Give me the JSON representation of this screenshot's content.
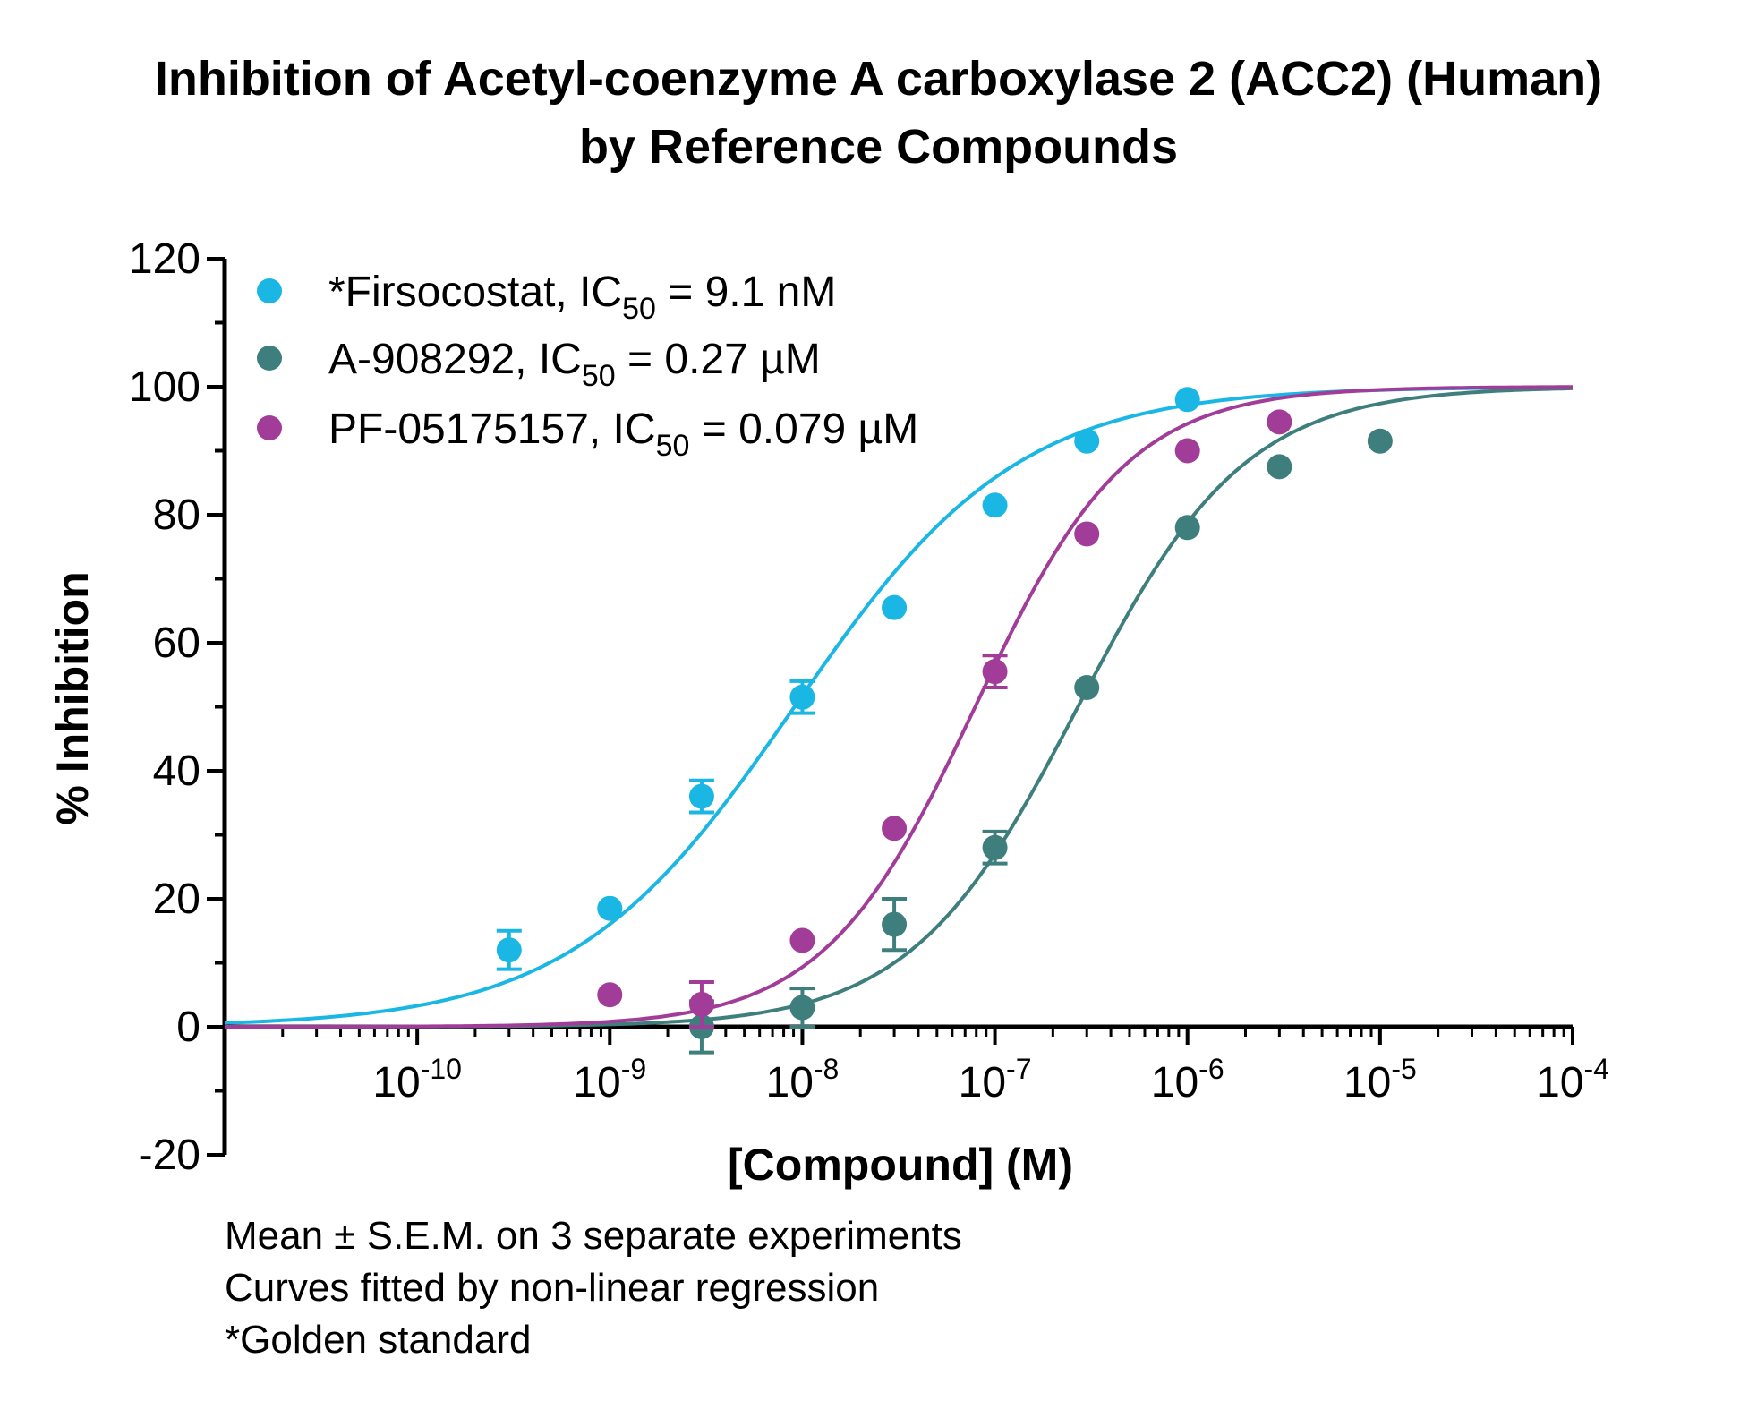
{
  "title_lines": [
    "Inhibition of Acetyl-coenzyme A carboxylase 2 (ACC2) (Human)",
    "by Reference Compounds"
  ],
  "notes": [
    "Mean ± S.E.M. on 3 separate experiments",
    "Curves fitted by non-linear regression",
    "*Golden standard"
  ],
  "chart_data": {
    "type": "scatter",
    "title": "Inhibition of Acetyl-coenzyme A carboxylase 2 (ACC2) (Human) by Reference Compounds",
    "xlabel": "[Compound] (M)",
    "ylabel": "% Inhibition",
    "x_scale": "log",
    "xlim": [
      1e-11,
      0.0001
    ],
    "ylim": [
      -20,
      120
    ],
    "y_ticks": [
      -20,
      0,
      20,
      40,
      60,
      80,
      100,
      120
    ],
    "x_tick_labels": [
      {
        "base": "10",
        "exp": "-10",
        "value": 1e-10
      },
      {
        "base": "10",
        "exp": "-9",
        "value": 1e-09
      },
      {
        "base": "10",
        "exp": "-8",
        "value": 1e-08
      },
      {
        "base": "10",
        "exp": "-7",
        "value": 1e-07
      },
      {
        "base": "10",
        "exp": "-6",
        "value": 1e-06
      },
      {
        "base": "10",
        "exp": "-5",
        "value": 1e-05
      },
      {
        "base": "10",
        "exp": "-4",
        "value": 0.0001
      }
    ],
    "grid": false,
    "legend_position": "top-left",
    "series": [
      {
        "name": "*Firsocostat",
        "legend_pre": "*Firsocostat, IC",
        "legend_sub": "50",
        "legend_post": " = 9.1 nM",
        "color": "#1ab6e4",
        "ic50": 9.1e-09,
        "hill": 0.75,
        "points": [
          {
            "x": 3e-10,
            "y": 12,
            "err": 3
          },
          {
            "x": 1e-09,
            "y": 18.5,
            "err": 0
          },
          {
            "x": 3e-09,
            "y": 36,
            "err": 2.5
          },
          {
            "x": 1e-08,
            "y": 51.5,
            "err": 2.5
          },
          {
            "x": 3e-08,
            "y": 65.5,
            "err": 0
          },
          {
            "x": 1e-07,
            "y": 81.5,
            "err": 0
          },
          {
            "x": 3e-07,
            "y": 91.5,
            "err": 0
          },
          {
            "x": 1e-06,
            "y": 98,
            "err": 0
          }
        ]
      },
      {
        "name": "A-908292",
        "legend_pre": "A-908292, IC",
        "legend_sub": "50",
        "legend_post": " = 0.27 µM",
        "color": "#3e7f7e",
        "ic50": 2.7e-07,
        "hill": 1.0,
        "points": [
          {
            "x": 3e-09,
            "y": 0,
            "err": 4
          },
          {
            "x": 1e-08,
            "y": 3,
            "err": 3
          },
          {
            "x": 3e-08,
            "y": 16,
            "err": 4
          },
          {
            "x": 1e-07,
            "y": 28,
            "err": 2.5
          },
          {
            "x": 3e-07,
            "y": 53,
            "err": 0
          },
          {
            "x": 1e-06,
            "y": 78,
            "err": 0
          },
          {
            "x": 3e-06,
            "y": 87.5,
            "err": 0
          },
          {
            "x": 1e-05,
            "y": 91.5,
            "err": 0
          }
        ]
      },
      {
        "name": "PF-05175157",
        "legend_pre": "PF-05175157, IC",
        "legend_sub": "50",
        "legend_post": " = 0.079 µM",
        "color": "#a13d98",
        "ic50": 7.9e-08,
        "hill": 1.1,
        "points": [
          {
            "x": 1e-09,
            "y": 5,
            "err": 0
          },
          {
            "x": 3e-09,
            "y": 3.5,
            "err": 3.5
          },
          {
            "x": 1e-08,
            "y": 13.5,
            "err": 0
          },
          {
            "x": 3e-08,
            "y": 31,
            "err": 0
          },
          {
            "x": 1e-07,
            "y": 55.5,
            "err": 2.5
          },
          {
            "x": 3e-07,
            "y": 77,
            "err": 0
          },
          {
            "x": 1e-06,
            "y": 90,
            "err": 0
          },
          {
            "x": 3e-06,
            "y": 94.5,
            "err": 0
          }
        ]
      }
    ]
  }
}
